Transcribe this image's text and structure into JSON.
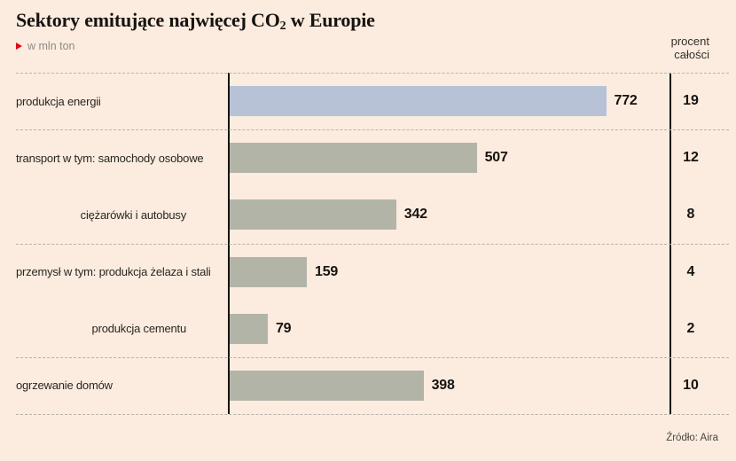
{
  "header": {
    "title_prefix": "Sektory emitujące najwięcej CO",
    "title_sub": "2",
    "title_suffix": " w Europie",
    "unit_label": "w mln ton",
    "percent_header_line1": "procent",
    "percent_header_line2": "całości"
  },
  "footer": {
    "source": "Źródło: Aira"
  },
  "chart_data": {
    "type": "bar",
    "orientation": "horizontal",
    "title": "Sektory emitujące najwięcej CO₂ w Europie",
    "unit_label": "w mln ton",
    "percent_column_header": "procent całości",
    "source": "Źródło: Aira",
    "xlim": [
      0,
      772
    ],
    "grid": "dashed-row-separators",
    "rows": [
      {
        "label": "produkcja energii",
        "value": 772,
        "percent": 19,
        "indent": false,
        "highlight": true,
        "separator_after": true
      },
      {
        "label": "transport w tym: samochody osobowe",
        "value": 507,
        "percent": 12,
        "indent": false,
        "highlight": false,
        "separator_after": false
      },
      {
        "label": "ciężarówki i autobusy",
        "value": 342,
        "percent": 8,
        "indent": true,
        "highlight": false,
        "separator_after": true
      },
      {
        "label": "przemysł w tym: produkcja żelaza i stali",
        "value": 159,
        "percent": 4,
        "indent": false,
        "highlight": false,
        "separator_after": false
      },
      {
        "label": "produkcja cementu",
        "value": 79,
        "percent": 2,
        "indent": true,
        "highlight": false,
        "separator_after": true
      },
      {
        "label": "ogrzewanie domów",
        "value": 398,
        "percent": 10,
        "indent": false,
        "highlight": false,
        "separator_after": true
      }
    ],
    "colors": {
      "background": "#fbecdf",
      "bar_default": "#b2b4a8",
      "bar_highlight": "#b7c2d7",
      "accent_red": "#e30613",
      "axis_line": "#17130f",
      "dashed_line": "#b9b2a8"
    }
  }
}
